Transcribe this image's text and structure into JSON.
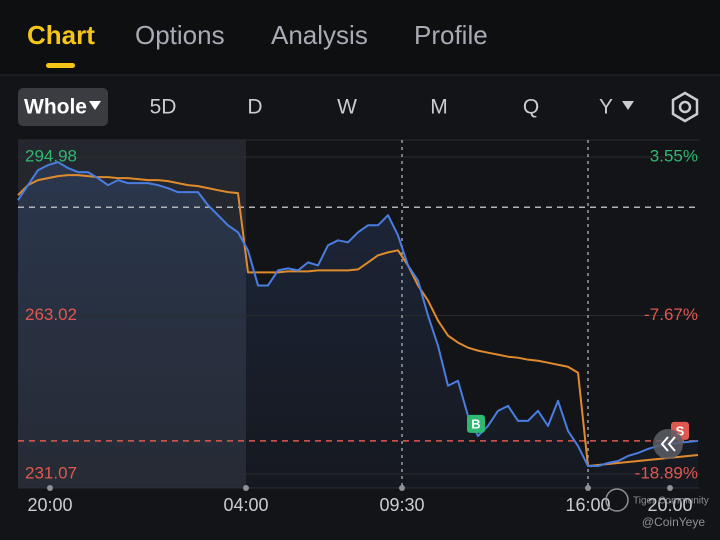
{
  "tabs": [
    "Chart",
    "Options",
    "Analysis",
    "Profile"
  ],
  "periods": [
    "Whole",
    "5D",
    "D",
    "W",
    "M",
    "Q",
    "Y"
  ],
  "watermark": {
    "brand": "Tiger Community",
    "handle": "@CoinYeye"
  },
  "chart_data": {
    "type": "line",
    "x": [
      0,
      1,
      2,
      3,
      4,
      5,
      6,
      7,
      8,
      9,
      10,
      11,
      12,
      13,
      14,
      15,
      16,
      17,
      18,
      19,
      20,
      21,
      22,
      23,
      24,
      25,
      26,
      27,
      28,
      29,
      30,
      31,
      32,
      33,
      34,
      35,
      36,
      37,
      38,
      39,
      40,
      41,
      42,
      43,
      44,
      45,
      46,
      47,
      48,
      49,
      50,
      51,
      52,
      53,
      54,
      55,
      56,
      57,
      58,
      59,
      60,
      61,
      62,
      63,
      64,
      65,
      66,
      67,
      68
    ],
    "series": [
      {
        "color": "#4a7de0",
        "values": [
          286.28,
          289.32,
          292.35,
          293.36,
          293.97,
          292.76,
          291.95,
          291.95,
          290.73,
          289.32,
          290.33,
          289.72,
          289.72,
          289.72,
          289.32,
          288.71,
          287.9,
          287.9,
          287.9,
          285.27,
          283.25,
          281.22,
          279.81,
          276.17,
          269.09,
          269.09,
          272.12,
          272.53,
          272.12,
          273.74,
          273.13,
          277.18,
          278.19,
          277.79,
          279.81,
          281.22,
          281.22,
          283.25,
          279.2,
          273.13,
          270.1,
          263.02,
          256.95,
          248.86,
          249.87,
          242.79,
          238.74,
          240.76,
          243.8,
          244.81,
          241.78,
          241.78,
          243.8,
          240.76,
          245.82,
          239.75,
          236.72,
          232.67,
          232.67,
          233.28,
          233.68,
          234.7,
          235.3,
          236.11,
          236.72,
          237.12,
          237.33,
          237.53,
          237.73
        ]
      },
      {
        "color": "#e08a2e",
        "values": [
          287.29,
          289.32,
          290.33,
          290.73,
          291.14,
          291.34,
          291.34,
          291.14,
          290.93,
          290.93,
          290.73,
          290.73,
          290.53,
          290.33,
          290.33,
          290.13,
          289.72,
          289.32,
          289.11,
          288.71,
          288.3,
          287.9,
          287.7,
          271.72,
          271.72,
          271.72,
          271.72,
          271.92,
          271.92,
          271.92,
          272.12,
          272.12,
          272.12,
          272.12,
          272.32,
          273.74,
          275.16,
          275.76,
          276.17,
          273.13,
          269.09,
          266.05,
          262.01,
          258.97,
          257.56,
          256.54,
          255.94,
          255.53,
          255.13,
          254.72,
          254.52,
          254.12,
          253.91,
          253.51,
          253.1,
          252.7,
          251.49,
          232.67,
          232.87,
          233.08,
          233.28,
          233.48,
          233.68,
          233.89,
          234.09,
          234.29,
          234.49,
          234.7,
          234.9
        ]
      }
    ],
    "xlim": [
      0,
      68.2
    ],
    "xticks": [
      {
        "value": 3.2,
        "label": "20:00"
      },
      {
        "value": 22.8,
        "label": "04:00"
      },
      {
        "value": 38.4,
        "label": "09:30"
      },
      {
        "value": 57,
        "label": "16:00"
      },
      {
        "value": 65.2,
        "label": "20:00"
      }
    ],
    "ylim": [
      228.24,
      298.42
    ],
    "yticks": [
      294.98,
      263.02,
      231.07
    ],
    "y2lim": [
      -19.88,
      4.76
    ],
    "y2ticks": [
      {
        "value": 3.55,
        "label": "3.55%"
      },
      {
        "value": -7.67,
        "label": "-7.67%"
      },
      {
        "value": -18.89,
        "label": "-18.89%"
      }
    ],
    "reference_lines": [
      {
        "value": 284.87,
        "color": "#b0b3ba"
      },
      {
        "value": 237.75,
        "color": "#e0584f"
      }
    ],
    "annotations": [
      {
        "text": "B",
        "x": 45.8,
        "color": "#2eb872"
      },
      {
        "text": "S",
        "x": 66.2,
        "color": "#e0584f"
      }
    ],
    "up_color": "#2eb872",
    "down_color": "#e0584f",
    "grid": true
  }
}
